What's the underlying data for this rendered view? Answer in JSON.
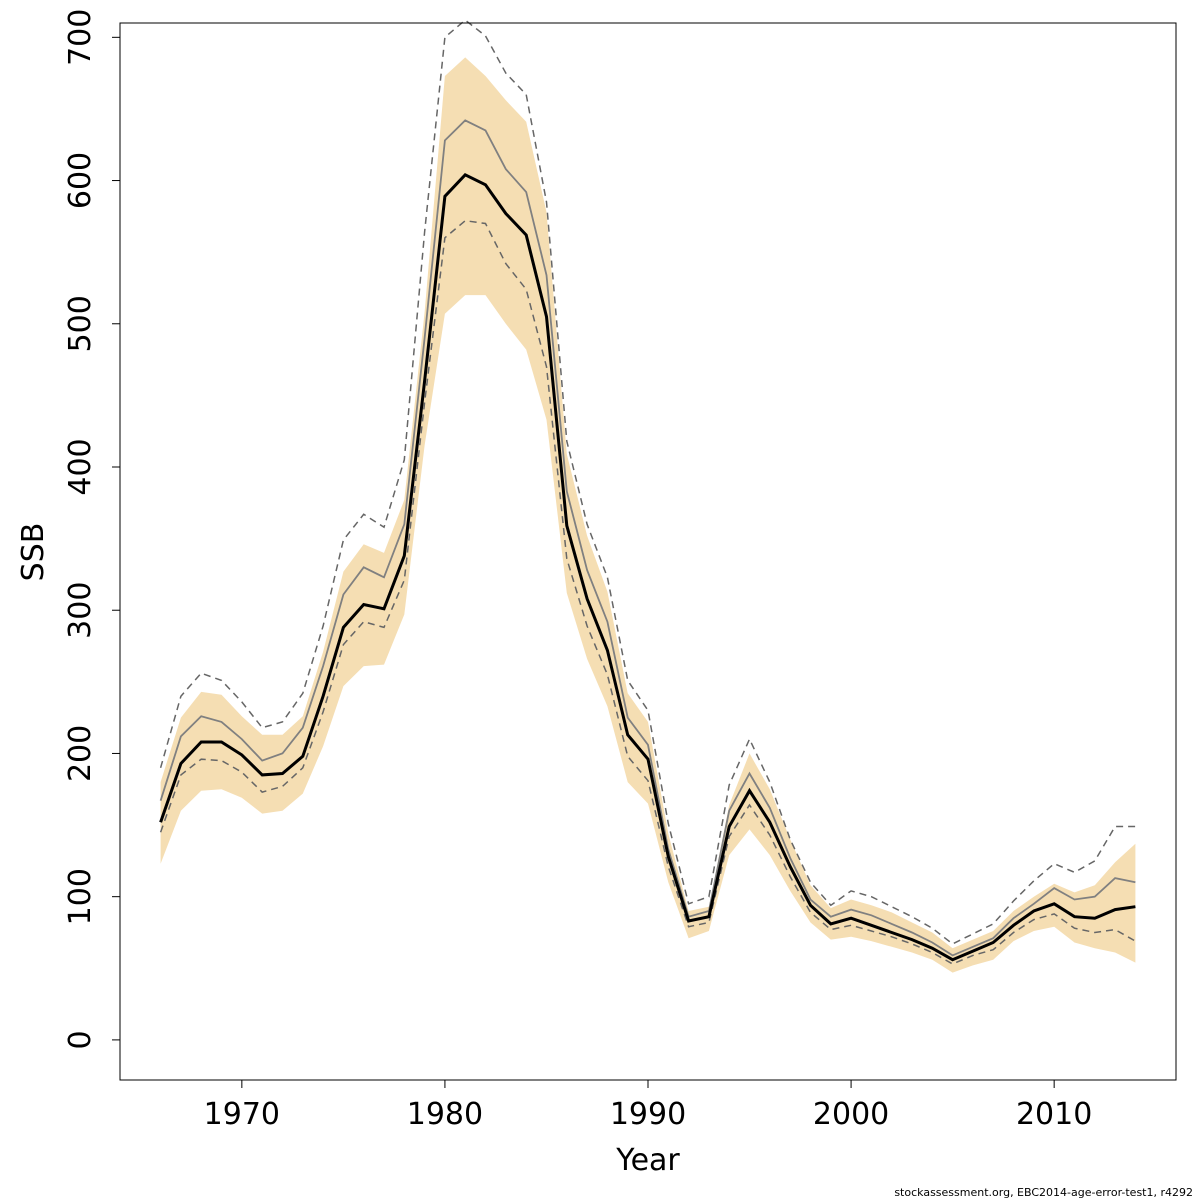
{
  "chart_data": {
    "type": "line",
    "xlabel": "Year",
    "ylabel": "SSB",
    "xlim": [
      1964,
      2016
    ],
    "ylim": [
      -28,
      710
    ],
    "x_ticks": [
      1970,
      1980,
      1990,
      2000,
      2010
    ],
    "y_ticks": [
      0,
      100,
      200,
      300,
      400,
      500,
      600,
      700
    ],
    "grid": false,
    "legend": "none",
    "colors": {
      "band": "#f5deb3",
      "median": "#000000",
      "mean": "#808080",
      "dashed": "#666666"
    },
    "x": [
      1966,
      1967,
      1968,
      1969,
      1970,
      1971,
      1972,
      1973,
      1974,
      1975,
      1976,
      1977,
      1978,
      1979,
      1980,
      1981,
      1982,
      1983,
      1984,
      1985,
      1986,
      1987,
      1988,
      1989,
      1990,
      1991,
      1992,
      1993,
      1994,
      1995,
      1996,
      1997,
      1998,
      1999,
      2000,
      2001,
      2002,
      2003,
      2004,
      2005,
      2006,
      2007,
      2008,
      2009,
      2010,
      2011,
      2012,
      2013,
      2014
    ],
    "series": [
      {
        "values": [
          152,
          193,
          208,
          208,
          199,
          185,
          186,
          198,
          240,
          288,
          304,
          301,
          338,
          460,
          589,
          604,
          597,
          577,
          562,
          505,
          359,
          308,
          272,
          213,
          196,
          128,
          83,
          86,
          149,
          174,
          152,
          121,
          94,
          81,
          85,
          80,
          75,
          70,
          64,
          56,
          62,
          68,
          80,
          90,
          95,
          86,
          85,
          91,
          93
        ]
      },
      {
        "values": [
          167,
          212,
          226,
          222,
          210,
          195,
          200,
          218,
          261,
          311,
          330,
          323,
          360,
          490,
          628,
          642,
          635,
          608,
          592,
          534,
          383,
          328,
          292,
          225,
          206,
          133,
          86,
          90,
          160,
          186,
          162,
          127,
          98,
          86,
          91,
          87,
          81,
          75,
          68,
          59,
          65,
          71,
          85,
          95,
          106,
          98,
          100,
          113,
          110
        ]
      },
      {
        "values": [
          123,
          160,
          174,
          175,
          169,
          158,
          160,
          172,
          205,
          247,
          261,
          262,
          297,
          415,
          507,
          520,
          520,
          500,
          482,
          433,
          312,
          266,
          233,
          180,
          165,
          110,
          71,
          76,
          129,
          147,
          129,
          104,
          82,
          70,
          72,
          69,
          65,
          61,
          56,
          47,
          52,
          56,
          69,
          76,
          79,
          68,
          64,
          61,
          54
        ]
      },
      {
        "values": [
          180,
          225,
          243,
          241,
          226,
          213,
          213,
          226,
          271,
          327,
          346,
          340,
          377,
          508,
          673,
          686,
          673,
          656,
          641,
          578,
          409,
          352,
          313,
          242,
          222,
          144,
          90,
          93,
          164,
          200,
          175,
          140,
          108,
          92,
          98,
          94,
          89,
          82,
          75,
          64,
          70,
          76,
          90,
          100,
          109,
          103,
          108,
          124,
          137
        ]
      },
      {
        "values": [
          145,
          185,
          196,
          195,
          187,
          173,
          177,
          190,
          229,
          276,
          292,
          288,
          321,
          445,
          560,
          572,
          570,
          542,
          524,
          470,
          336,
          289,
          255,
          198,
          181,
          121,
          79,
          82,
          142,
          164,
          143,
          114,
          89,
          77,
          80,
          76,
          72,
          67,
          61,
          53,
          59,
          63,
          75,
          84,
          88,
          78,
          75,
          77,
          69
        ]
      },
      {
        "values": [
          190,
          240,
          256,
          251,
          236,
          218,
          222,
          242,
          289,
          349,
          367,
          358,
          405,
          564,
          700,
          712,
          701,
          675,
          660,
          585,
          418,
          360,
          323,
          251,
          230,
          151,
          95,
          100,
          178,
          210,
          180,
          140,
          110,
          94,
          104,
          100,
          93,
          86,
          78,
          67,
          74,
          81,
          97,
          111,
          123,
          117,
          125,
          149,
          149
        ]
      }
    ],
    "annotations": [
      "stockassessment.org, EBC2014-age-error-test1, r4292"
    ]
  }
}
